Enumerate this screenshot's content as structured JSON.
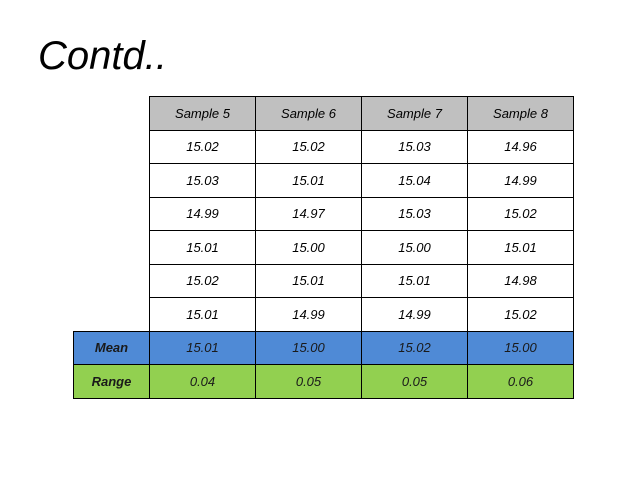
{
  "title": "Contd..",
  "table": {
    "headers": [
      "Sample 5",
      "Sample 6",
      "Sample 7",
      "Sample 8"
    ],
    "rows": [
      [
        "15.02",
        "15.02",
        "15.03",
        "14.96"
      ],
      [
        "15.03",
        "15.01",
        "15.04",
        "14.99"
      ],
      [
        "14.99",
        "14.97",
        "15.03",
        "15.02"
      ],
      [
        "15.01",
        "15.00",
        "15.00",
        "15.01"
      ],
      [
        "15.02",
        "15.01",
        "15.01",
        "14.98"
      ],
      [
        "15.01",
        "14.99",
        "14.99",
        "15.02"
      ]
    ],
    "mean": {
      "label": "Mean",
      "values": [
        "15.01",
        "15.00",
        "15.02",
        "15.00"
      ]
    },
    "range": {
      "label": "Range",
      "values": [
        "0.04",
        "0.05",
        "0.05",
        "0.06"
      ]
    }
  },
  "colors": {
    "header_bg": "#c0c0c0",
    "mean_bg": "#4f8ad6",
    "range_bg": "#92d050",
    "border": "#000000"
  }
}
